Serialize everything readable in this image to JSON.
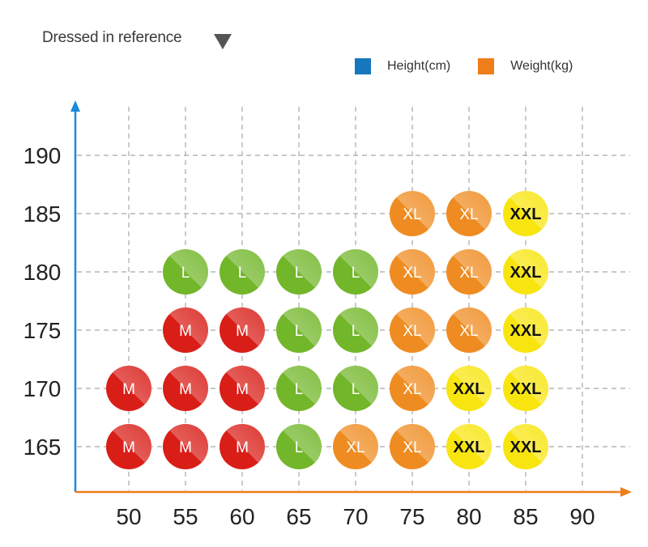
{
  "title": "Dressed in reference",
  "legend": [
    {
      "label": "Height(cm)",
      "color": "#1677be"
    },
    {
      "label": "Weight(kg)",
      "color": "#ef7d1a"
    }
  ],
  "colors": {
    "M": "#d91e18",
    "L": "#72b62a",
    "XL": "#ef8c21",
    "XXL": "#f8e510",
    "x_axis": "#ef7d1a",
    "y_axis": "#1f8ad8",
    "grid": "#b5b5b5"
  },
  "chart_data": {
    "type": "scatter",
    "title": "Dressed in reference",
    "xlabel": "",
    "ylabel": "",
    "x_ticks": [
      50,
      55,
      60,
      65,
      70,
      75,
      80,
      85,
      90
    ],
    "y_ticks": [
      165,
      170,
      175,
      180,
      185,
      190
    ],
    "xlim": [
      45,
      92
    ],
    "ylim": [
      161,
      196
    ],
    "grid": true,
    "legend_position": "top-right",
    "points": [
      {
        "x": 50,
        "y": 165,
        "size": "M"
      },
      {
        "x": 55,
        "y": 165,
        "size": "M"
      },
      {
        "x": 60,
        "y": 165,
        "size": "M"
      },
      {
        "x": 65,
        "y": 165,
        "size": "L"
      },
      {
        "x": 70,
        "y": 165,
        "size": "XL"
      },
      {
        "x": 75,
        "y": 165,
        "size": "XL"
      },
      {
        "x": 80,
        "y": 165,
        "size": "XXL"
      },
      {
        "x": 85,
        "y": 165,
        "size": "XXL"
      },
      {
        "x": 50,
        "y": 170,
        "size": "M"
      },
      {
        "x": 55,
        "y": 170,
        "size": "M"
      },
      {
        "x": 60,
        "y": 170,
        "size": "M"
      },
      {
        "x": 65,
        "y": 170,
        "size": "L"
      },
      {
        "x": 70,
        "y": 170,
        "size": "L"
      },
      {
        "x": 75,
        "y": 170,
        "size": "XL"
      },
      {
        "x": 80,
        "y": 170,
        "size": "XXL"
      },
      {
        "x": 85,
        "y": 170,
        "size": "XXL"
      },
      {
        "x": 55,
        "y": 175,
        "size": "M"
      },
      {
        "x": 60,
        "y": 175,
        "size": "M"
      },
      {
        "x": 65,
        "y": 175,
        "size": "L"
      },
      {
        "x": 70,
        "y": 175,
        "size": "L"
      },
      {
        "x": 75,
        "y": 175,
        "size": "XL"
      },
      {
        "x": 80,
        "y": 175,
        "size": "XL"
      },
      {
        "x": 85,
        "y": 175,
        "size": "XXL"
      },
      {
        "x": 55,
        "y": 180,
        "size": "L"
      },
      {
        "x": 60,
        "y": 180,
        "size": "L"
      },
      {
        "x": 65,
        "y": 180,
        "size": "L"
      },
      {
        "x": 70,
        "y": 180,
        "size": "L"
      },
      {
        "x": 75,
        "y": 180,
        "size": "XL"
      },
      {
        "x": 80,
        "y": 180,
        "size": "XL"
      },
      {
        "x": 85,
        "y": 180,
        "size": "XXL"
      },
      {
        "x": 75,
        "y": 185,
        "size": "XL"
      },
      {
        "x": 80,
        "y": 185,
        "size": "XL"
      },
      {
        "x": 85,
        "y": 185,
        "size": "XXL"
      }
    ]
  }
}
